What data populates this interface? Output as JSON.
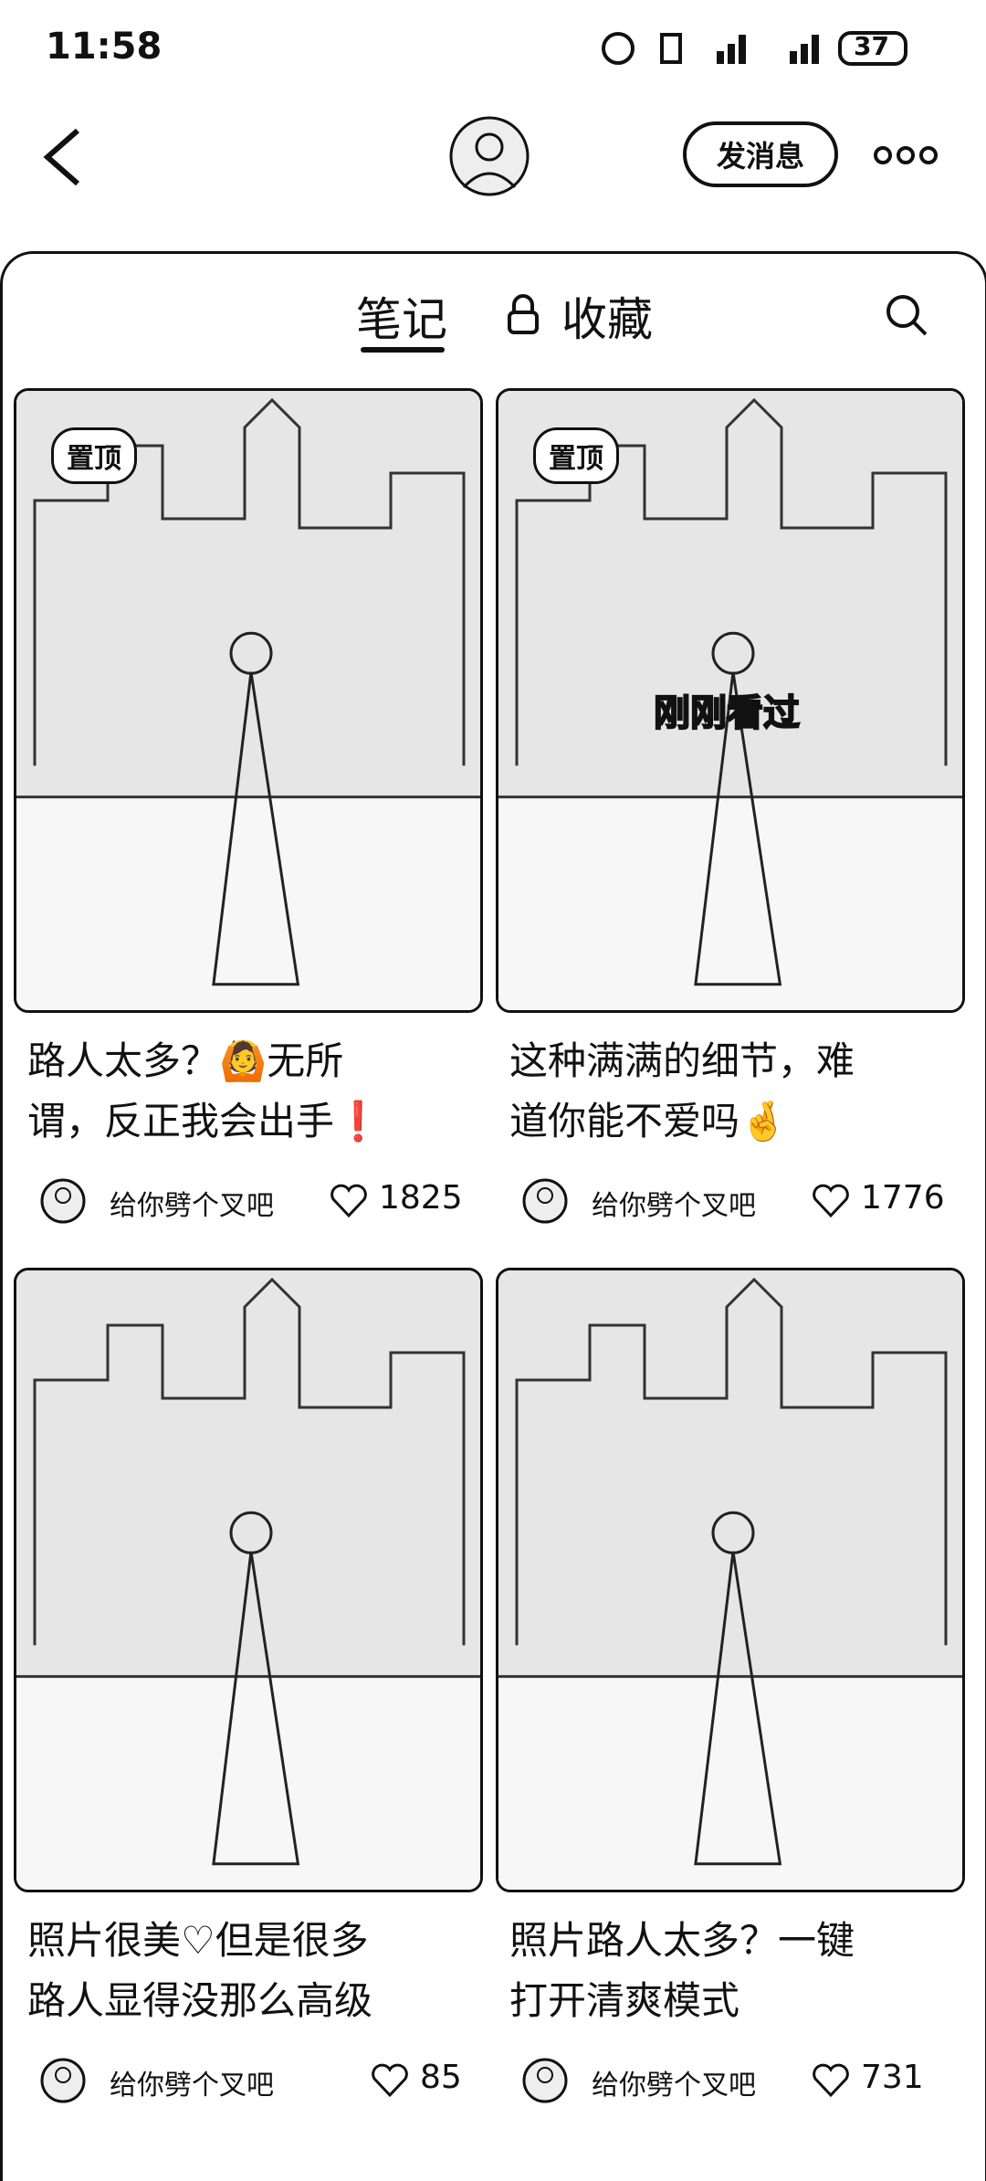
{
  "status_bar": {
    "time": "11:58",
    "battery": "37"
  },
  "header": {
    "message_button": "发消息"
  },
  "tabs": {
    "notes": "笔记",
    "favorites": "收藏"
  },
  "cards": [
    {
      "badge": "置顶",
      "title_lines": [
        "路人太多？🙆无所",
        "谓，反正我会出手❗"
      ],
      "author": "给你劈个叉吧",
      "likes": "1825"
    },
    {
      "badge": "置顶",
      "overlay": "刚刚看过",
      "title_lines": [
        "这种满满的细节，难",
        "道你能不爱吗🤞"
      ],
      "author": "给你劈个叉吧",
      "likes": "1776"
    },
    {
      "title_lines": [
        "照片很美♡但是很多",
        "路人显得没那么高级"
      ],
      "author": "给你劈个叉吧",
      "likes": "85"
    },
    {
      "title_lines": [
        "照片路人太多？一键",
        "打开清爽模式"
      ],
      "author": "给你劈个叉吧",
      "likes": "731"
    }
  ]
}
